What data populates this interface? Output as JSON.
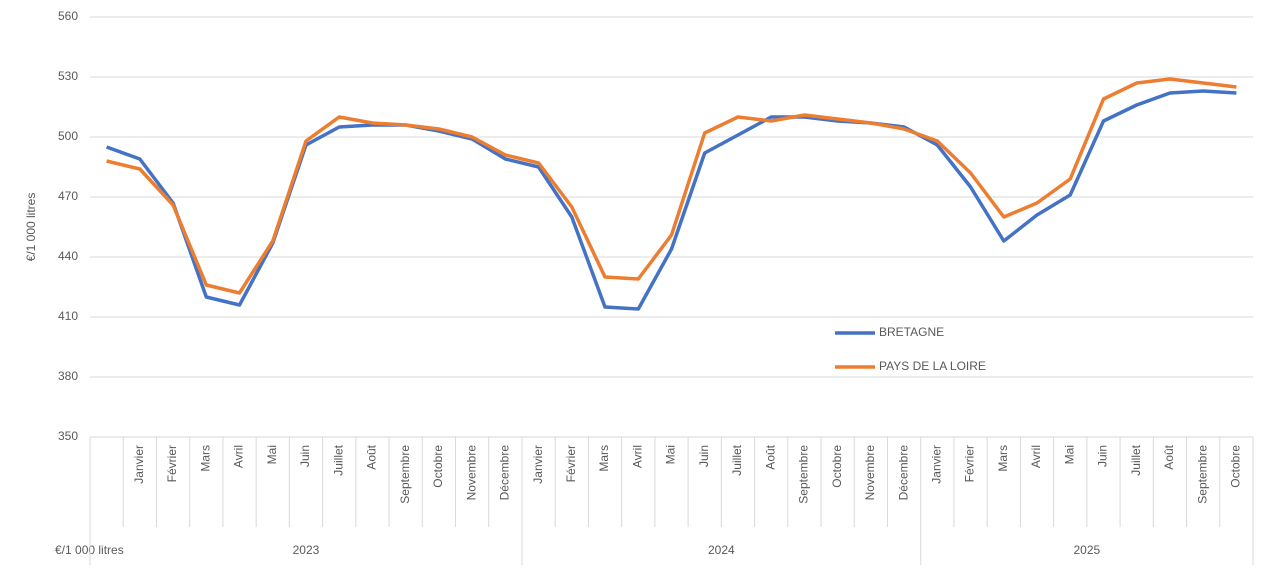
{
  "chart_data": {
    "type": "line",
    "y_label": "€/1 000 litres",
    "corner_label": "€/1 000 litres",
    "groups": [
      {
        "label": "2023",
        "categories": [
          null,
          "Janvier",
          "Février",
          "Mars",
          "Avril",
          "Mai",
          "Juin",
          "Juillet",
          "Août",
          "Septembre",
          "Octobre",
          "Novembre",
          "Décembre"
        ]
      },
      {
        "label": "2024",
        "categories": [
          "Janvier",
          "Février",
          "Mars",
          "Avril",
          "Mai",
          "Juin",
          "Juillet",
          "Août",
          "Septembre",
          "Octobre",
          "Novembre",
          "Décembre"
        ]
      },
      {
        "label": "2025",
        "categories": [
          "Janvier",
          "Février",
          "Mars",
          "Avril",
          "Mai",
          "Juin",
          "Juillet",
          "Août",
          "Septembre",
          "Octobre"
        ]
      }
    ],
    "series": [
      {
        "name": "BRETAGNE",
        "color": "#4472c4",
        "values": [
          495,
          489,
          467,
          420,
          416,
          447,
          496,
          505,
          506,
          506,
          503,
          499,
          489,
          485,
          460,
          415,
          414,
          444,
          492,
          501,
          510,
          510,
          508,
          507,
          505,
          496,
          475,
          448,
          461,
          471,
          508,
          516,
          522,
          523,
          522
        ]
      },
      {
        "name": "PAYS DE LA LOIRE",
        "color": "#ed7d31",
        "values": [
          488,
          484,
          466,
          426,
          422,
          448,
          498,
          510,
          507,
          506,
          504,
          500,
          491,
          487,
          465,
          430,
          429,
          451,
          502,
          510,
          508,
          511,
          509,
          507,
          504,
          498,
          482,
          460,
          467,
          479,
          519,
          527,
          529,
          527,
          525
        ]
      }
    ],
    "ylim": [
      350,
      560
    ],
    "yticks": [
      350,
      380,
      410,
      440,
      470,
      500,
      530,
      560
    ],
    "grid": true,
    "legend": "inside-right"
  }
}
